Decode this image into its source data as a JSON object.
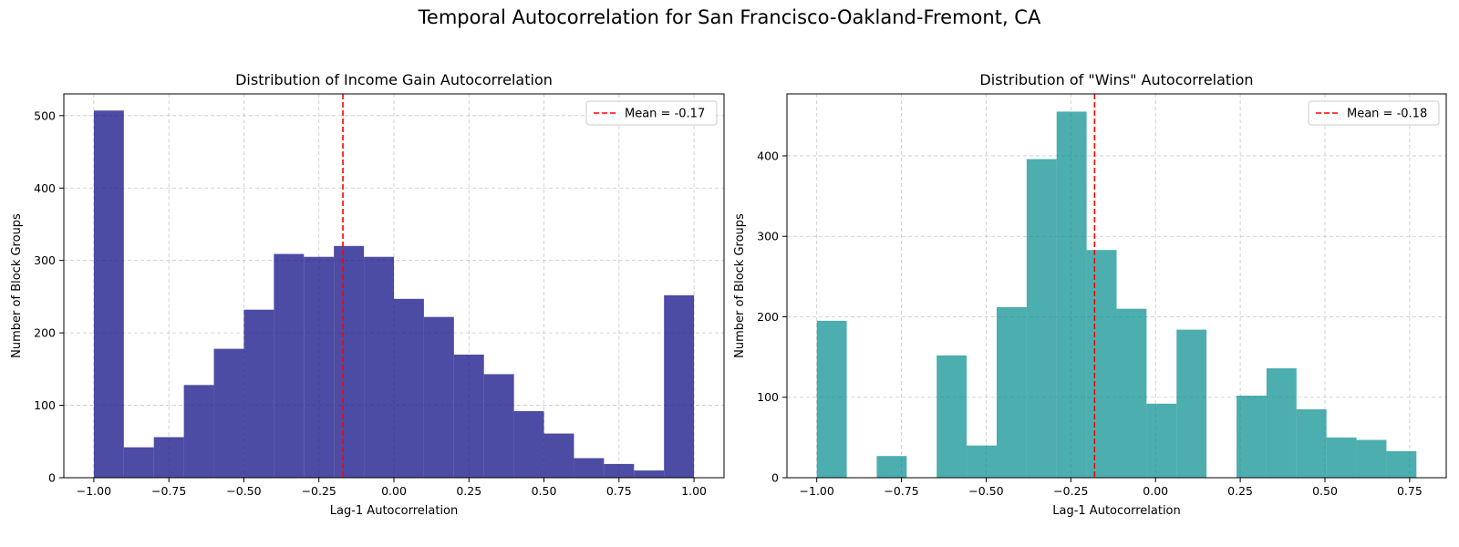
{
  "figure": {
    "suptitle": "Temporal Autocorrelation for San Francisco-Oakland-Fremont, CA"
  },
  "chart_data": [
    {
      "type": "bar",
      "subtype": "histogram",
      "title": "Distribution of Income Gain Autocorrelation",
      "xlabel": "Lag-1 Autocorrelation",
      "ylabel": "Number of Block Groups",
      "xlim": [
        -1.1,
        1.1
      ],
      "ylim": [
        0,
        530
      ],
      "xticks": [
        -1.0,
        -0.75,
        -0.5,
        -0.25,
        0.0,
        0.25,
        0.5,
        0.75,
        1.0
      ],
      "xtick_labels": [
        "−1.00",
        "−0.75",
        "−0.50",
        "−0.25",
        "0.00",
        "0.25",
        "0.50",
        "0.75",
        "1.00"
      ],
      "yticks": [
        0,
        100,
        200,
        300,
        400,
        500
      ],
      "ytick_labels": [
        "0",
        "100",
        "200",
        "300",
        "400",
        "500"
      ],
      "bin_edges": [
        -1.0,
        -0.9,
        -0.8,
        -0.7,
        -0.6,
        -0.5,
        -0.4,
        -0.3,
        -0.2,
        -0.1,
        0.0,
        0.1,
        0.2,
        0.3,
        0.4,
        0.5,
        0.6,
        0.7,
        0.8,
        0.9,
        1.0
      ],
      "counts": [
        507,
        42,
        56,
        128,
        178,
        232,
        309,
        305,
        320,
        305,
        247,
        222,
        170,
        143,
        92,
        61,
        27,
        19,
        10,
        252
      ],
      "bar_color": "#1a1a8c",
      "bar_opacity": 0.78,
      "mean": -0.17,
      "mean_label": "Mean = -0.17",
      "mean_color": "#ff0000",
      "grid": true,
      "legend_position": "top-right"
    },
    {
      "type": "bar",
      "subtype": "histogram",
      "title": "Distribution of \"Wins\" Autocorrelation",
      "xlabel": "Lag-1 Autocorrelation",
      "ylabel": "Number of Block Groups",
      "xlim": [
        -1.088,
        0.858
      ],
      "ylim": [
        0,
        477
      ],
      "xticks": [
        -1.0,
        -0.75,
        -0.5,
        -0.25,
        0.0,
        0.25,
        0.5,
        0.75
      ],
      "xtick_labels": [
        "−1.00",
        "−0.75",
        "−0.50",
        "−0.25",
        "0.00",
        "0.25",
        "0.50",
        "0.75"
      ],
      "yticks": [
        0,
        100,
        200,
        300,
        400
      ],
      "ytick_labels": [
        "0",
        "100",
        "200",
        "300",
        "400"
      ],
      "bin_edges": [
        -1.0,
        -0.9115,
        -0.823,
        -0.7345,
        -0.646,
        -0.5575,
        -0.469,
        -0.3805,
        -0.292,
        -0.2035,
        -0.115,
        -0.0265,
        0.062,
        0.1505,
        0.239,
        0.3275,
        0.416,
        0.5045,
        0.593,
        0.6815,
        0.77
      ],
      "counts": [
        195,
        0,
        27,
        0,
        152,
        40,
        212,
        396,
        455,
        283,
        210,
        92,
        184,
        0,
        102,
        136,
        85,
        50,
        47,
        33
      ],
      "bar_color": "#008b8b",
      "bar_opacity": 0.7,
      "mean": -0.18,
      "mean_label": "Mean = -0.18",
      "mean_color": "#ff0000",
      "grid": true,
      "legend_position": "top-right"
    }
  ]
}
